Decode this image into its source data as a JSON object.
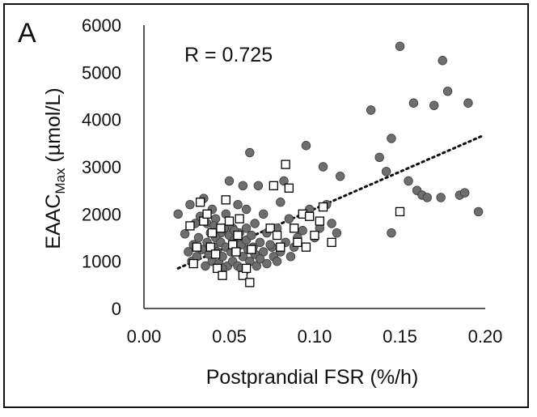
{
  "panel_label": "A",
  "chart_data": {
    "type": "scatter",
    "title": "",
    "xlabel": "Postprandial FSR (%/h)",
    "ylabel_main": "EAAC",
    "ylabel_sub": "Max",
    "ylabel_unit": " (µmol/L)",
    "xlim": [
      0.0,
      0.2
    ],
    "ylim": [
      0,
      6000
    ],
    "x_ticks": [
      0.0,
      0.05,
      0.1,
      0.15,
      0.2
    ],
    "x_tick_labels": [
      "0.00",
      "0.05",
      "0.10",
      "0.15",
      "0.20"
    ],
    "y_ticks": [
      0,
      1000,
      2000,
      3000,
      4000,
      5000,
      6000
    ],
    "y_tick_labels": [
      "0",
      "1000",
      "2000",
      "3000",
      "4000",
      "5000",
      "6000"
    ],
    "grid": false,
    "annotation": "R = 0.725",
    "trendline": {
      "style": "dotted",
      "x": [
        0.02,
        0.198
      ],
      "y": [
        850,
        3650
      ]
    },
    "series": [
      {
        "marker": "filled-circle",
        "color": "#6e6e6e",
        "points": [
          [
            0.02,
            2000
          ],
          [
            0.024,
            1580
          ],
          [
            0.027,
            2200
          ],
          [
            0.03,
            1800
          ],
          [
            0.033,
            1950
          ],
          [
            0.035,
            2330
          ],
          [
            0.037,
            1800
          ],
          [
            0.04,
            2100
          ],
          [
            0.042,
            1900
          ],
          [
            0.045,
            1600
          ],
          [
            0.048,
            2000
          ],
          [
            0.05,
            2700
          ],
          [
            0.052,
            1700
          ],
          [
            0.055,
            2200
          ],
          [
            0.058,
            2600
          ],
          [
            0.06,
            2100
          ],
          [
            0.062,
            3300
          ],
          [
            0.065,
            1800
          ],
          [
            0.067,
            2600
          ],
          [
            0.07,
            2000
          ],
          [
            0.072,
            1600
          ],
          [
            0.075,
            1300
          ],
          [
            0.078,
            1700
          ],
          [
            0.08,
            2250
          ],
          [
            0.082,
            2700
          ],
          [
            0.085,
            1900
          ],
          [
            0.088,
            1300
          ],
          [
            0.09,
            1500
          ],
          [
            0.093,
            1650
          ],
          [
            0.095,
            3450
          ],
          [
            0.097,
            2100
          ],
          [
            0.1,
            1500
          ],
          [
            0.103,
            1700
          ],
          [
            0.105,
            3000
          ],
          [
            0.107,
            2200
          ],
          [
            0.11,
            1800
          ],
          [
            0.113,
            1600
          ],
          [
            0.115,
            2800
          ],
          [
            0.026,
            1200
          ],
          [
            0.028,
            1000
          ],
          [
            0.029,
            1350
          ],
          [
            0.031,
            1100
          ],
          [
            0.032,
            1500
          ],
          [
            0.034,
            1250
          ],
          [
            0.036,
            900
          ],
          [
            0.037,
            1400
          ],
          [
            0.038,
            1150
          ],
          [
            0.039,
            1600
          ],
          [
            0.04,
            1000
          ],
          [
            0.041,
            1300
          ],
          [
            0.042,
            1500
          ],
          [
            0.043,
            1200
          ],
          [
            0.044,
            950
          ],
          [
            0.045,
            1400
          ],
          [
            0.046,
            1100
          ],
          [
            0.047,
            1700
          ],
          [
            0.048,
            1300
          ],
          [
            0.049,
            900
          ],
          [
            0.05,
            1550
          ],
          [
            0.051,
            1200
          ],
          [
            0.052,
            1000
          ],
          [
            0.053,
            1450
          ],
          [
            0.054,
            1250
          ],
          [
            0.055,
            900
          ],
          [
            0.056,
            1600
          ],
          [
            0.057,
            1350
          ],
          [
            0.058,
            1100
          ],
          [
            0.059,
            800
          ],
          [
            0.06,
            1450
          ],
          [
            0.061,
            1250
          ],
          [
            0.062,
            1000
          ],
          [
            0.063,
            1550
          ],
          [
            0.064,
            1300
          ],
          [
            0.065,
            1150
          ],
          [
            0.066,
            900
          ],
          [
            0.068,
            1400
          ],
          [
            0.07,
            1200
          ],
          [
            0.072,
            950
          ],
          [
            0.074,
            1350
          ],
          [
            0.076,
            1100
          ],
          [
            0.078,
            1000
          ],
          [
            0.08,
            1200
          ],
          [
            0.083,
            1400
          ],
          [
            0.086,
            1100
          ],
          [
            0.046,
            850
          ],
          [
            0.053,
            1650
          ],
          [
            0.06,
            1700
          ],
          [
            0.068,
            1050
          ],
          [
            0.041,
            1750
          ],
          [
            0.057,
            850
          ],
          [
            0.133,
            4200
          ],
          [
            0.138,
            3200
          ],
          [
            0.142,
            2900
          ],
          [
            0.145,
            3600
          ],
          [
            0.145,
            1600
          ],
          [
            0.15,
            5550
          ],
          [
            0.155,
            2700
          ],
          [
            0.158,
            4350
          ],
          [
            0.16,
            2500
          ],
          [
            0.163,
            2400
          ],
          [
            0.166,
            2350
          ],
          [
            0.17,
            4300
          ],
          [
            0.174,
            2350
          ],
          [
            0.175,
            5250
          ],
          [
            0.178,
            4600
          ],
          [
            0.185,
            2400
          ],
          [
            0.188,
            2450
          ],
          [
            0.19,
            4350
          ],
          [
            0.196,
            2050
          ]
        ]
      },
      {
        "marker": "open-square",
        "color": "#000000",
        "points": [
          [
            0.027,
            1750
          ],
          [
            0.029,
            950
          ],
          [
            0.031,
            1300
          ],
          [
            0.033,
            2250
          ],
          [
            0.035,
            1850
          ],
          [
            0.037,
            2000
          ],
          [
            0.039,
            1300
          ],
          [
            0.04,
            1600
          ],
          [
            0.042,
            1150
          ],
          [
            0.043,
            850
          ],
          [
            0.045,
            1700
          ],
          [
            0.046,
            700
          ],
          [
            0.048,
            2300
          ],
          [
            0.05,
            1850
          ],
          [
            0.052,
            1350
          ],
          [
            0.054,
            1200
          ],
          [
            0.055,
            1550
          ],
          [
            0.056,
            1900
          ],
          [
            0.058,
            700
          ],
          [
            0.06,
            850
          ],
          [
            0.062,
            550
          ],
          [
            0.063,
            1250
          ],
          [
            0.074,
            1700
          ],
          [
            0.076,
            2600
          ],
          [
            0.078,
            1550
          ],
          [
            0.08,
            1300
          ],
          [
            0.083,
            3050
          ],
          [
            0.085,
            2550
          ],
          [
            0.088,
            1700
          ],
          [
            0.09,
            1400
          ],
          [
            0.093,
            2000
          ],
          [
            0.095,
            1300
          ],
          [
            0.097,
            1950
          ],
          [
            0.1,
            1550
          ],
          [
            0.103,
            1850
          ],
          [
            0.105,
            2150
          ],
          [
            0.11,
            1400
          ],
          [
            0.15,
            2050
          ]
        ]
      }
    ]
  }
}
